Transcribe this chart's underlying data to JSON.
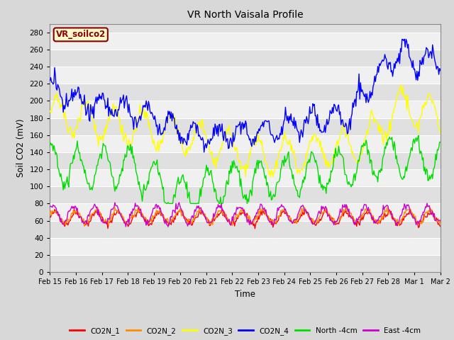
{
  "title": "VR North Vaisala Profile",
  "xlabel": "Time",
  "ylabel": "Soil CO2 (mV)",
  "ylim": [
    0,
    290
  ],
  "yticks": [
    0,
    20,
    40,
    60,
    80,
    100,
    120,
    140,
    160,
    180,
    200,
    220,
    240,
    260,
    280
  ],
  "x_labels": [
    "Feb 15",
    "Feb 16",
    "Feb 17",
    "Feb 18",
    "Feb 19",
    "Feb 20",
    "Feb 21",
    "Feb 22",
    "Feb 23",
    "Feb 24",
    "Feb 25",
    "Feb 26",
    "Feb 27",
    "Feb 28",
    "Mar 1",
    "Mar 2"
  ],
  "legend_labels": [
    "CO2N_1",
    "CO2N_2",
    "CO2N_3",
    "CO2N_4",
    "North -4cm",
    "East -4cm"
  ],
  "line_colors": [
    "#ff0000",
    "#ff8c00",
    "#ffff00",
    "#0000ff",
    "#00dd00",
    "#cc00cc"
  ],
  "annotation_text": "VR_soilco2",
  "annotation_color": "#8b0000",
  "annotation_bg": "#fffacd",
  "plot_bg_light": "#f0f0f0",
  "plot_bg_dark": "#e0e0e0",
  "fig_bg": "#d8d8d8",
  "grid_color": "#ffffff",
  "n_points": 500
}
